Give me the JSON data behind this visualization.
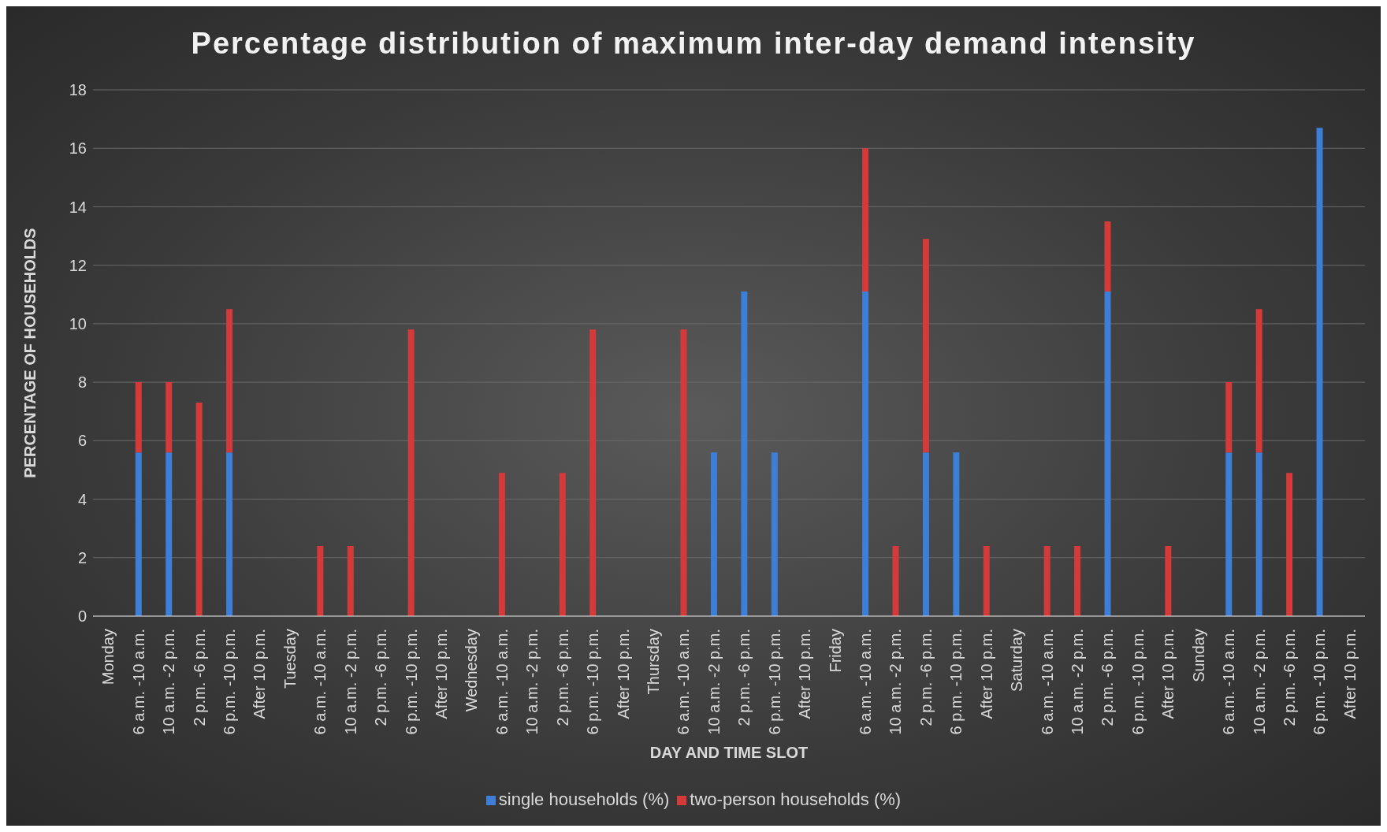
{
  "chart_data": {
    "type": "bar",
    "title": "Percentage distribution of maximum inter-day demand intensity",
    "xlabel": "DAY AND TIME SLOT",
    "ylabel": "PERCENTAGE OF HOUSEHOLDS",
    "categories": [
      "Monday",
      "6 a.m. -10 a.m.",
      "10 a.m. -2 p.m.",
      "2 p.m. -6 p.m.",
      "6 p.m. -10 p.m.",
      "After 10 p.m.",
      "Tuesday",
      "6 a.m. -10 a.m.",
      "10 a.m. -2 p.m.",
      "2 p.m. -6 p.m.",
      "6 p.m. -10 p.m.",
      "After 10 p.m.",
      "Wednesday",
      "6 a.m. -10 a.m.",
      "10 a.m. -2 p.m.",
      "2 p.m. -6 p.m.",
      "6 p.m. -10 p.m.",
      "After 10 p.m.",
      "Thursday",
      "6 a.m. -10 a.m.",
      "10 a.m. -2 p.m.",
      "2 p.m. -6 p.m.",
      "6 p.m. -10 p.m.",
      "After 10 p.m.",
      "Friday",
      "6 a.m. -10 a.m.",
      "10 a.m. -2 p.m.",
      "2 p.m. -6 p.m.",
      "6 p.m. -10 p.m.",
      "After 10 p.m.",
      "Saturday",
      "6 a.m. -10 a.m.",
      "10 a.m. -2 p.m.",
      "2 p.m. -6 p.m.",
      "6 p.m. -10 p.m.",
      "After 10 p.m.",
      "Sunday",
      "6 a.m. -10 a.m.",
      "10 a.m. -2 p.m.",
      "2 p.m. -6 p.m.",
      "6 p.m. -10 p.m.",
      "After 10 p.m."
    ],
    "series": [
      {
        "name": "single households (%)",
        "color": "#3d7fd6",
        "values": [
          null,
          5.6,
          5.6,
          null,
          5.6,
          null,
          null,
          null,
          null,
          null,
          null,
          null,
          null,
          null,
          null,
          null,
          null,
          null,
          null,
          null,
          5.6,
          11.1,
          5.6,
          null,
          null,
          11.1,
          null,
          5.6,
          5.6,
          null,
          null,
          null,
          null,
          11.1,
          null,
          null,
          null,
          5.6,
          5.6,
          null,
          16.7,
          null
        ]
      },
      {
        "name": "two-person households (%)",
        "color": "#d43a3a",
        "values": [
          null,
          2.4,
          2.4,
          7.3,
          4.9,
          null,
          null,
          2.4,
          2.4,
          null,
          9.8,
          null,
          null,
          4.9,
          null,
          4.9,
          9.8,
          null,
          null,
          9.8,
          null,
          null,
          null,
          null,
          null,
          4.9,
          2.4,
          7.3,
          null,
          2.4,
          null,
          2.4,
          2.4,
          2.4,
          null,
          2.4,
          null,
          2.4,
          4.9,
          4.9,
          null,
          null
        ]
      }
    ],
    "stacked": true,
    "ylim": [
      0,
      18
    ],
    "yticks": [
      0,
      2,
      4,
      6,
      8,
      10,
      12,
      14,
      16,
      18
    ],
    "grid": "y",
    "legend": "bottom"
  }
}
